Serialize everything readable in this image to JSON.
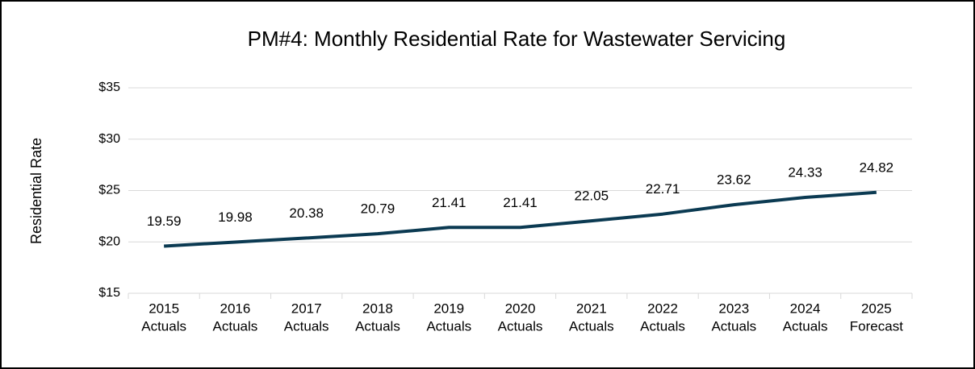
{
  "chart_data": {
    "type": "line",
    "title": "PM#4: Monthly Residential Rate for Wastewater Servicing",
    "y_label": "Residential Rate",
    "categories": [
      [
        "2015",
        "Actuals"
      ],
      [
        "2016",
        "Actuals"
      ],
      [
        "2017",
        "Actuals"
      ],
      [
        "2018",
        "Actuals"
      ],
      [
        "2019",
        "Actuals"
      ],
      [
        "2020",
        "Actuals"
      ],
      [
        "2021",
        "Actuals"
      ],
      [
        "2022",
        "Actuals"
      ],
      [
        "2023",
        "Actuals"
      ],
      [
        "2024",
        "Actuals"
      ],
      [
        "2025",
        "Forecast"
      ]
    ],
    "values": [
      19.59,
      19.98,
      20.38,
      20.79,
      21.41,
      21.41,
      22.05,
      22.71,
      23.62,
      24.33,
      24.82
    ],
    "color": "#0b3a52",
    "ylim": [
      15,
      35
    ],
    "yticks": [
      {
        "value": 15,
        "label": "$15"
      },
      {
        "value": 20,
        "label": "$20"
      },
      {
        "value": 25,
        "label": "$25"
      },
      {
        "value": 30,
        "label": "$30"
      },
      {
        "value": 35,
        "label": "$35"
      }
    ],
    "grid": true
  }
}
